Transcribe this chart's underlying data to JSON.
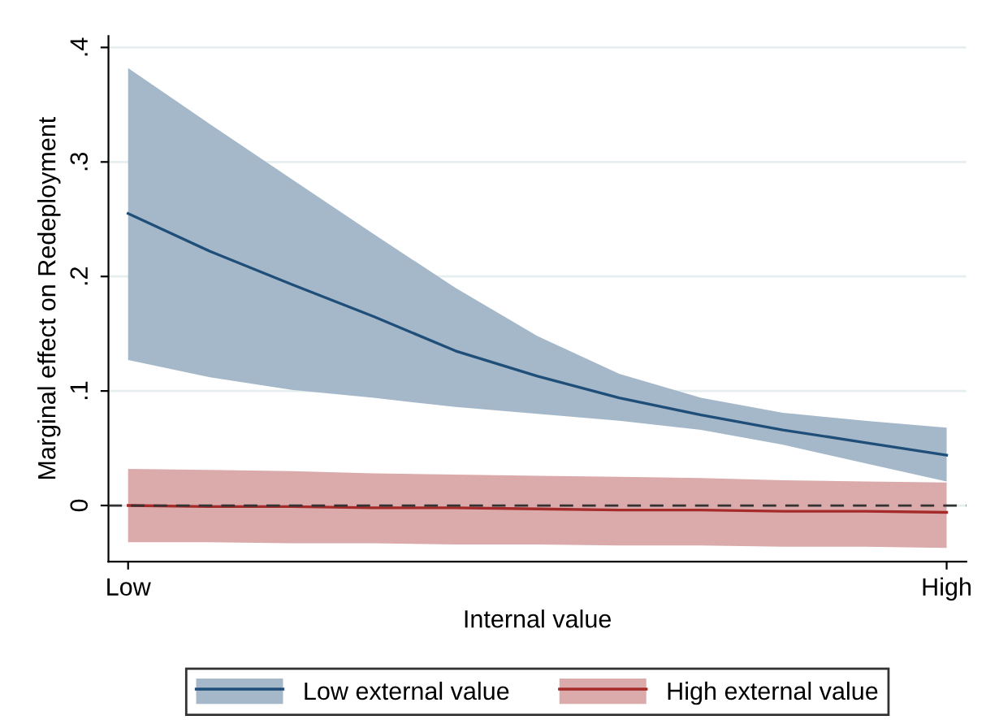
{
  "chart_data": {
    "type": "line",
    "xlabel": "Internal value",
    "ylabel": "Marginal effect on Redeployment",
    "categories": [
      "Low",
      null,
      null,
      null,
      null,
      null,
      null,
      null,
      null,
      null,
      "High"
    ],
    "ylim": [
      -0.049,
      0.41
    ],
    "yticks": [
      {
        "value": 0,
        "label": "0"
      },
      {
        "value": 0.1,
        "label": ".1"
      },
      {
        "value": 0.2,
        "label": ".2"
      },
      {
        "value": 0.3,
        "label": ".3"
      },
      {
        "value": 0.4,
        "label": ".4"
      }
    ],
    "grid": "y",
    "legend": "bottom",
    "marker": "none",
    "ref_lines": [
      {
        "axis": "y",
        "value": 0,
        "color": "#333333",
        "line_style": "dashed"
      }
    ],
    "series": [
      {
        "name": "Low external value",
        "color": "#1f4e79",
        "values": [
          0.255,
          0.222,
          0.193,
          0.165,
          0.135,
          0.113,
          0.094,
          0.079,
          0.066,
          0.055,
          0.044
        ],
        "lower": [
          0.127,
          0.112,
          0.101,
          0.094,
          0.086,
          0.08,
          0.074,
          0.066,
          0.053,
          0.037,
          0.021
        ],
        "upper": [
          0.382,
          0.333,
          0.285,
          0.237,
          0.19,
          0.148,
          0.115,
          0.094,
          0.081,
          0.074,
          0.068
        ]
      },
      {
        "name": "High external value",
        "color": "#a52a2a",
        "values": [
          0,
          -0.001,
          -0.001,
          -0.002,
          -0.002,
          -0.003,
          -0.004,
          -0.004,
          -0.005,
          -0.005,
          -0.006
        ],
        "lower": [
          -0.032,
          -0.032,
          -0.033,
          -0.033,
          -0.034,
          -0.034,
          -0.035,
          -0.035,
          -0.036,
          -0.036,
          -0.037
        ],
        "upper": [
          0.032,
          0.031,
          0.03,
          0.028,
          0.027,
          0.026,
          0.025,
          0.024,
          0.022,
          0.021,
          0.02
        ]
      }
    ]
  }
}
